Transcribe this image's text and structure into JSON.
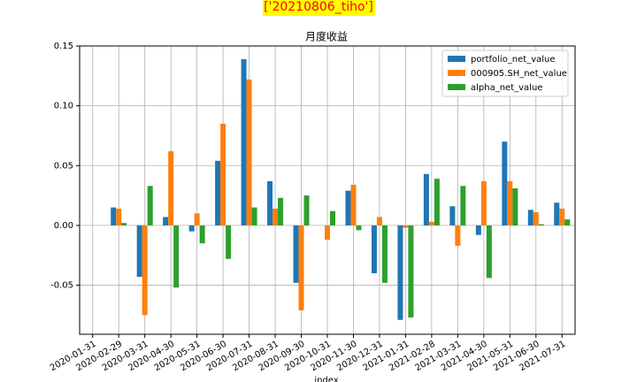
{
  "chart_data": {
    "type": "bar",
    "suptitle": "['20210806_tiho']",
    "title": "月度收益",
    "xlabel": "index",
    "categories": [
      "2020-01-31",
      "2020-02-29",
      "2020-03-31",
      "2020-04-30",
      "2020-05-31",
      "2020-06-30",
      "2020-07-31",
      "2020-08-31",
      "2020-09-30",
      "2020-10-31",
      "2020-11-30",
      "2020-12-31",
      "2021-01-31",
      "2021-02-28",
      "2021-03-31",
      "2021-04-30",
      "2021-05-31",
      "2021-06-30",
      "2021-07-31"
    ],
    "series": [
      {
        "name": "portfolio_net_value",
        "color": "#1f77b4",
        "values": [
          null,
          0.015,
          -0.043,
          0.007,
          -0.005,
          0.054,
          0.139,
          0.037,
          -0.048,
          0.0,
          0.029,
          -0.04,
          -0.079,
          0.043,
          0.016,
          -0.008,
          0.07,
          0.013,
          0.019
        ]
      },
      {
        "name": "000905.SH_net_value",
        "color": "#ff7f0e",
        "values": [
          null,
          0.014,
          -0.075,
          0.062,
          0.01,
          0.085,
          0.122,
          0.014,
          -0.071,
          -0.012,
          0.034,
          0.007,
          -0.002,
          0.003,
          -0.017,
          0.037,
          0.037,
          0.011,
          0.014
        ]
      },
      {
        "name": "alpha_net_value",
        "color": "#2ca02c",
        "values": [
          null,
          0.002,
          0.033,
          -0.052,
          -0.015,
          -0.028,
          0.015,
          0.023,
          0.025,
          0.012,
          -0.004,
          -0.048,
          -0.077,
          0.039,
          0.033,
          -0.044,
          0.031,
          0.001,
          0.005
        ]
      }
    ],
    "ylim": [
      -0.091,
      0.15
    ],
    "yticks": [
      -0.05,
      {
        "value": 0,
        "label": "0.00"
      },
      0.05,
      {
        "value": 0.1,
        "label": "0.10"
      },
      0.15
    ],
    "grid": true,
    "legend": "upper right"
  }
}
